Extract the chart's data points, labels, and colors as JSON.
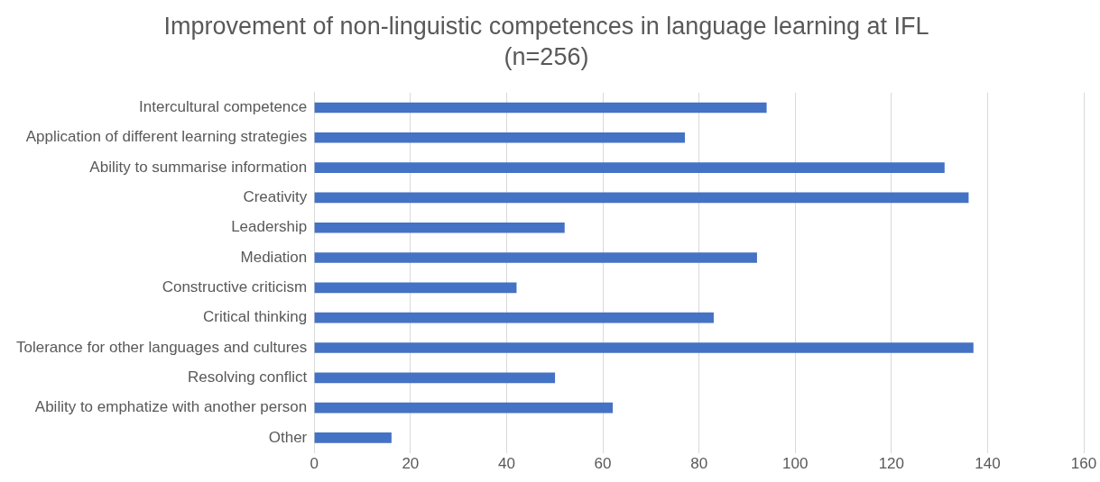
{
  "chart_data": {
    "type": "bar",
    "orientation": "horizontal",
    "title": "Improvement of non-linguistic competences in language learning at IFL",
    "subtitle": "(n=256)",
    "categories": [
      "Intercultural competence",
      "Application of different learning strategies",
      "Ability to summarise information",
      "Creativity",
      "Leadership",
      "Mediation",
      "Constructive criticism",
      "Critical thinking",
      "Tolerance for other languages and cultures",
      "Resolving conflict",
      "Ability to emphatize with another person",
      "Other"
    ],
    "values": [
      94,
      77,
      131,
      136,
      52,
      92,
      42,
      83,
      137,
      50,
      62,
      16
    ],
    "color": "#4472c4",
    "xlim": [
      0,
      160
    ],
    "xticks": [
      0,
      20,
      40,
      60,
      80,
      100,
      120,
      140,
      160
    ],
    "grid": "x",
    "legend": false
  }
}
